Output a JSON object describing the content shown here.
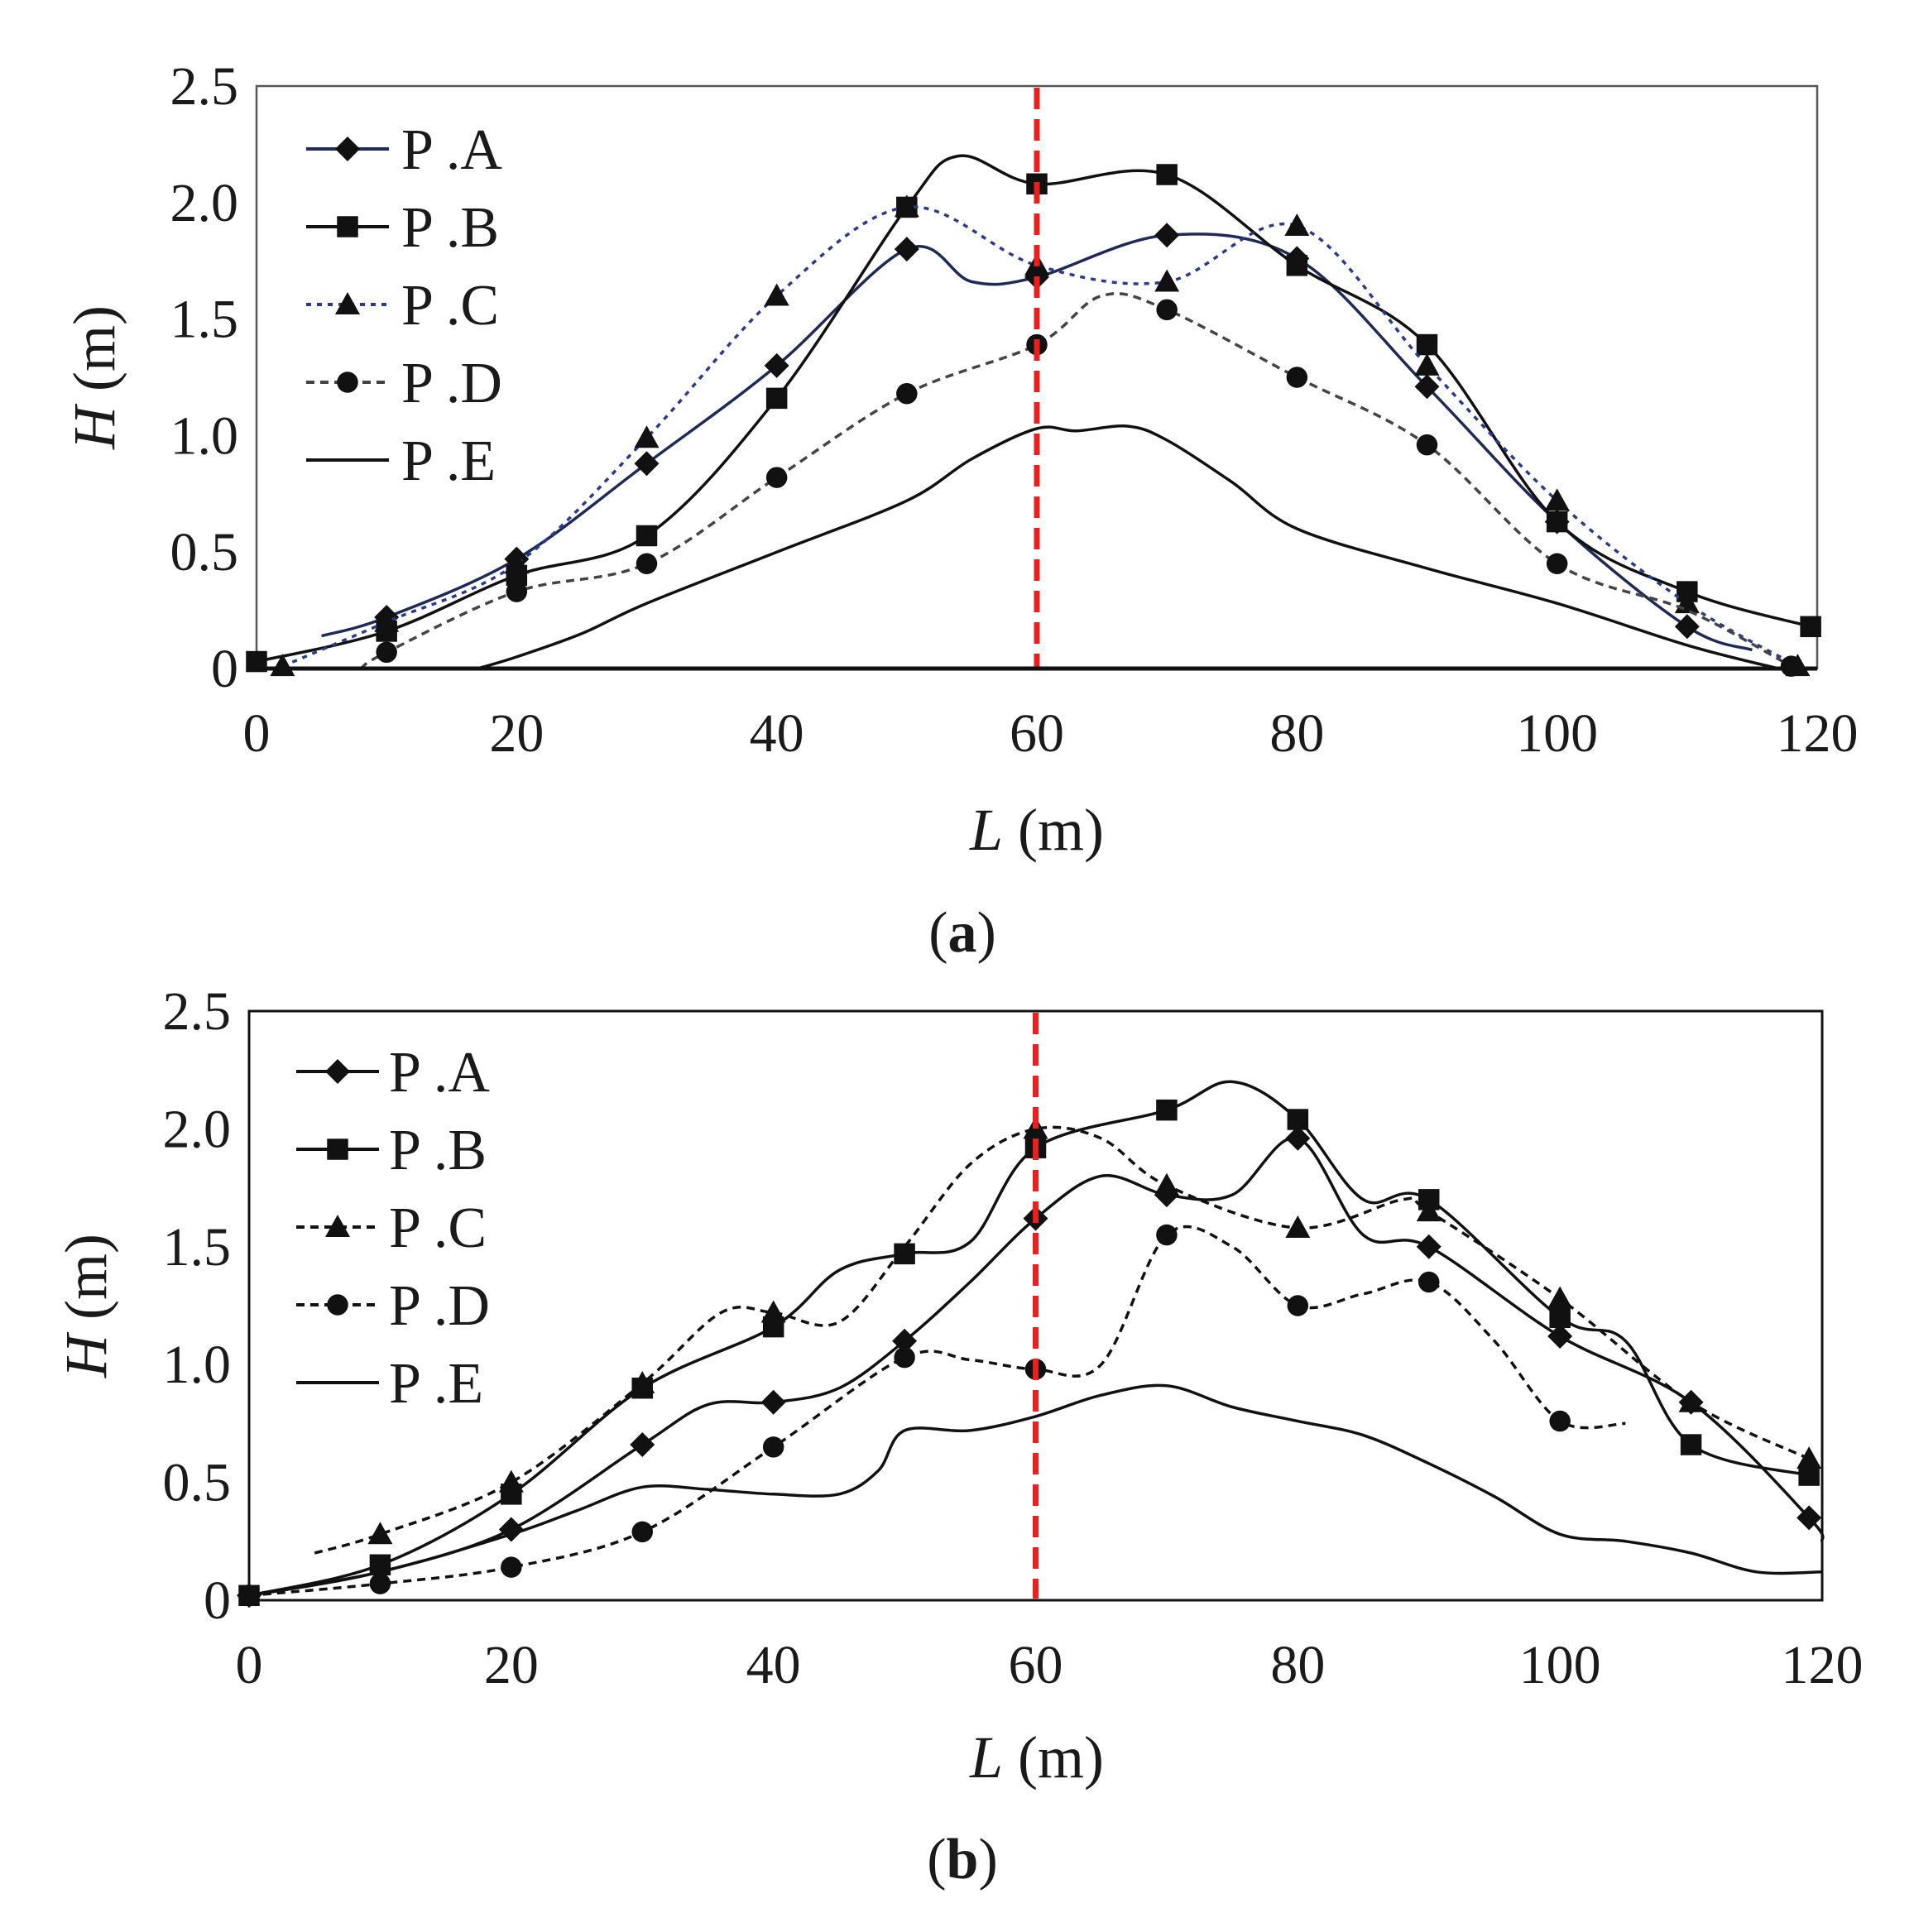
{
  "figure": {
    "panels": [
      {
        "panel_label_open": "(",
        "panel_label_letter": "a",
        "panel_label_close": ")"
      },
      {
        "panel_label_open": "(",
        "panel_label_letter": "b",
        "panel_label_close": ")"
      }
    ]
  },
  "chart_data": [
    {
      "type": "line",
      "title": "",
      "xlabel_var": "L",
      "xlabel_unit": " (m)",
      "ylabel_var": "H",
      "ylabel_unit": " (m)",
      "xlim": [
        0,
        120
      ],
      "ylim": [
        0,
        2.5
      ],
      "xticks": [
        0,
        20,
        40,
        60,
        80,
        100,
        120
      ],
      "xtick_labels": [
        "0",
        "20",
        "40",
        "60",
        "80",
        "100",
        "120"
      ],
      "yticks": [
        0,
        0.5,
        1.0,
        1.5,
        2.0,
        2.5
      ],
      "ytick_labels": [
        "0",
        "0.5",
        "1.0",
        "1.5",
        "2.0",
        "2.5"
      ],
      "grid": false,
      "legend_position": "top-left",
      "reference_line": {
        "x": 60,
        "color": "#e8201e",
        "style": "dashed"
      },
      "series": [
        {
          "name": "P .A",
          "marker": "diamond",
          "color": "#1f2a55",
          "dash": "solid",
          "x": [
            10,
            20,
            30,
            40,
            50,
            60,
            70,
            80,
            90,
            100,
            110
          ],
          "y": [
            0.22,
            0.47,
            0.88,
            1.3,
            1.8,
            1.68,
            1.86,
            1.76,
            1.21,
            0.63,
            0.18
          ],
          "line_x": [
            5,
            10,
            20,
            30,
            40,
            50,
            55,
            60,
            70,
            80,
            90,
            100,
            110,
            115
          ],
          "line_y": [
            0.14,
            0.22,
            0.47,
            0.88,
            1.3,
            1.8,
            1.66,
            1.68,
            1.86,
            1.76,
            1.21,
            0.63,
            0.18,
            0.08
          ]
        },
        {
          "name": "P .B",
          "marker": "square",
          "color": "#111111",
          "dash": "solid",
          "x": [
            0,
            10,
            20,
            30,
            40,
            50,
            60,
            70,
            80,
            90,
            100,
            110,
            119.5
          ],
          "y": [
            0.03,
            0.16,
            0.4,
            0.57,
            1.16,
            1.98,
            2.08,
            2.12,
            1.73,
            1.39,
            0.63,
            0.33,
            0.18
          ],
          "line_x": [
            0,
            10,
            20,
            30,
            40,
            50,
            54,
            60,
            70,
            80,
            90,
            100,
            110,
            119.5
          ],
          "line_y": [
            0.03,
            0.16,
            0.4,
            0.57,
            1.16,
            1.98,
            2.2,
            2.08,
            2.12,
            1.73,
            1.39,
            0.63,
            0.33,
            0.18
          ]
        },
        {
          "name": "P .C",
          "marker": "triangle",
          "color": "#2b3a8a",
          "dash": "dotted",
          "x": [
            2,
            10,
            20,
            30,
            40,
            50,
            60,
            70,
            80,
            90,
            100,
            110,
            118.5
          ],
          "y": [
            0.01,
            0.2,
            0.45,
            0.99,
            1.6,
            1.98,
            1.73,
            1.66,
            1.9,
            1.3,
            0.72,
            0.28,
            0.01
          ],
          "line_x": [
            2,
            10,
            20,
            30,
            40,
            50,
            60,
            70,
            80,
            90,
            100,
            110,
            118.5
          ],
          "line_y": [
            0.01,
            0.2,
            0.45,
            0.99,
            1.6,
            1.98,
            1.73,
            1.66,
            1.9,
            1.3,
            0.72,
            0.28,
            0.01
          ]
        },
        {
          "name": "P .D",
          "marker": "circle",
          "color": "#444444",
          "dash": "dashed",
          "x": [
            10,
            20,
            30,
            40,
            50,
            60,
            70,
            80,
            90,
            100,
            118
          ],
          "y": [
            0.07,
            0.33,
            0.45,
            0.82,
            1.18,
            1.39,
            1.54,
            1.25,
            0.96,
            0.45,
            0.01
          ],
          "line_x": [
            8,
            10,
            20,
            30,
            40,
            50,
            60,
            65,
            70,
            80,
            90,
            100,
            110,
            118
          ],
          "line_y": [
            0.0,
            0.07,
            0.33,
            0.45,
            0.82,
            1.18,
            1.39,
            1.6,
            1.54,
            1.25,
            0.96,
            0.45,
            0.25,
            0.01
          ]
        },
        {
          "name": "P .E",
          "marker": "none",
          "color": "#111111",
          "dash": "solid",
          "x": [],
          "y": [],
          "line_x": [
            17,
            20,
            25,
            30,
            40,
            50,
            55,
            60,
            63,
            67,
            70,
            75,
            80,
            90,
            100,
            110,
            117
          ],
          "line_y": [
            0.0,
            0.05,
            0.15,
            0.28,
            0.5,
            0.72,
            0.9,
            1.03,
            1.02,
            1.04,
            0.98,
            0.8,
            0.6,
            0.43,
            0.28,
            0.1,
            0.0
          ]
        }
      ]
    },
    {
      "type": "line",
      "title": "",
      "xlabel_var": "L",
      "xlabel_unit": " (m)",
      "ylabel_var": "H",
      "ylabel_unit": " (m)",
      "xlim": [
        0,
        120
      ],
      "ylim": [
        0,
        2.5
      ],
      "xticks": [
        0,
        20,
        40,
        60,
        80,
        100,
        120
      ],
      "xtick_labels": [
        "0",
        "20",
        "40",
        "60",
        "80",
        "100",
        "120"
      ],
      "yticks": [
        0,
        0.5,
        1.0,
        1.5,
        2.0,
        2.5
      ],
      "ytick_labels": [
        "0",
        "0.5",
        "1.0",
        "1.5",
        "2.0",
        "2.5"
      ],
      "grid": false,
      "legend_position": "top-left",
      "reference_line": {
        "x": 60,
        "color": "#e8201e",
        "style": "dashed"
      },
      "series": [
        {
          "name": "P .A",
          "marker": "diamond",
          "color": "#111111",
          "dash": "solid",
          "x": [
            0,
            20,
            30,
            40,
            50,
            60,
            70,
            80,
            90,
            100,
            110,
            119
          ],
          "y": [
            0.02,
            0.3,
            0.66,
            0.84,
            1.1,
            1.62,
            1.72,
            1.96,
            1.5,
            1.12,
            0.84,
            0.35
          ],
          "line_x": [
            0,
            10,
            20,
            30,
            35,
            40,
            45,
            50,
            55,
            60,
            65,
            70,
            75,
            80,
            85,
            90,
            100,
            110,
            119,
            120
          ],
          "line_y": [
            0.02,
            0.12,
            0.3,
            0.66,
            0.83,
            0.84,
            0.9,
            1.1,
            1.35,
            1.62,
            1.8,
            1.72,
            1.72,
            1.96,
            1.55,
            1.5,
            1.12,
            0.84,
            0.35,
            0.25
          ]
        },
        {
          "name": "P .B",
          "marker": "square",
          "color": "#111111",
          "dash": "solid",
          "x": [
            0,
            10,
            20,
            30,
            40,
            50,
            60,
            70,
            80,
            90,
            100,
            110,
            119
          ],
          "y": [
            0.02,
            0.15,
            0.45,
            0.9,
            1.16,
            1.47,
            1.92,
            2.08,
            2.04,
            1.7,
            1.2,
            0.66,
            0.53
          ],
          "line_x": [
            0,
            10,
            20,
            30,
            40,
            45,
            50,
            55,
            60,
            70,
            75,
            80,
            85,
            90,
            100,
            105,
            110,
            119
          ],
          "line_y": [
            0.02,
            0.15,
            0.45,
            0.9,
            1.16,
            1.4,
            1.47,
            1.52,
            1.92,
            2.08,
            2.2,
            2.04,
            1.7,
            1.7,
            1.2,
            1.1,
            0.66,
            0.53
          ]
        },
        {
          "name": "P .C",
          "marker": "triangle",
          "color": "#111111",
          "dash": "dashed",
          "x": [
            10,
            20,
            30,
            40,
            60,
            70,
            80,
            90,
            100,
            110,
            119
          ],
          "y": [
            0.28,
            0.5,
            0.92,
            1.22,
            2.0,
            1.76,
            1.58,
            1.65,
            1.28,
            0.84,
            0.6
          ],
          "line_x": [
            5,
            10,
            20,
            30,
            36,
            40,
            45,
            50,
            55,
            60,
            65,
            70,
            80,
            88,
            90,
            100,
            110,
            119
          ],
          "line_y": [
            0.2,
            0.28,
            0.5,
            0.92,
            1.22,
            1.22,
            1.18,
            1.5,
            1.85,
            2.0,
            1.96,
            1.76,
            1.58,
            1.7,
            1.65,
            1.28,
            0.84,
            0.6
          ]
        },
        {
          "name": "P .D",
          "marker": "circle",
          "color": "#111111",
          "dash": "dashed",
          "x": [
            10,
            20,
            30,
            40,
            50,
            60,
            70,
            80,
            90,
            100
          ],
          "y": [
            0.07,
            0.14,
            0.29,
            0.65,
            1.03,
            0.98,
            1.55,
            1.25,
            1.35,
            0.76
          ],
          "line_x": [
            0,
            10,
            20,
            30,
            40,
            50,
            55,
            60,
            65,
            70,
            75,
            80,
            85,
            90,
            95,
            100,
            105
          ],
          "line_y": [
            0.02,
            0.07,
            0.14,
            0.29,
            0.65,
            1.03,
            1.02,
            0.98,
            1.0,
            1.55,
            1.5,
            1.25,
            1.3,
            1.35,
            1.1,
            0.76,
            0.75
          ]
        },
        {
          "name": "P .E",
          "marker": "none",
          "color": "#111111",
          "dash": "solid",
          "x": [],
          "y": [],
          "line_x": [
            0,
            10,
            20,
            25,
            30,
            35,
            40,
            45,
            48,
            50,
            55,
            60,
            65,
            70,
            75,
            80,
            85,
            90,
            95,
            100,
            105,
            110,
            115,
            120
          ],
          "line_y": [
            0.02,
            0.12,
            0.28,
            0.38,
            0.48,
            0.47,
            0.45,
            0.45,
            0.55,
            0.72,
            0.72,
            0.78,
            0.87,
            0.91,
            0.82,
            0.76,
            0.7,
            0.58,
            0.44,
            0.28,
            0.25,
            0.2,
            0.12,
            0.12
          ]
        }
      ]
    }
  ]
}
